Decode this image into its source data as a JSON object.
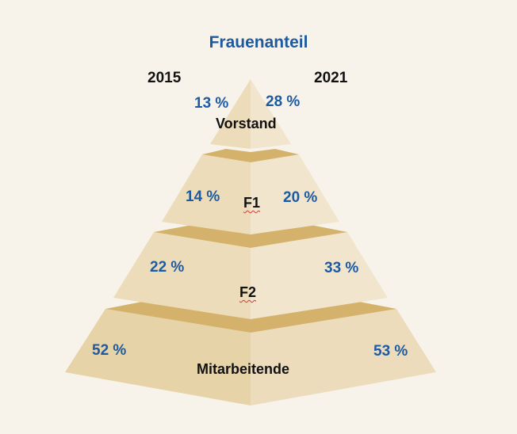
{
  "title": "Frauenanteil",
  "years": {
    "left": "2015",
    "right": "2021"
  },
  "levels": [
    {
      "name": "Vorstand",
      "share_2015": "13 %",
      "share_2021": "28 %"
    },
    {
      "name": "F1",
      "share_2015": "14 %",
      "share_2021": "20 %"
    },
    {
      "name": "F2",
      "share_2015": "22 %",
      "share_2021": "33 %"
    },
    {
      "name": "Mitarbeitende",
      "share_2015": "52 %",
      "share_2021": "53 %"
    }
  ],
  "colors": {
    "background": "#f8f3ea",
    "face_2015": "#ead9b6",
    "face_2021": "#f0e4cd",
    "ledge": "#d6b472",
    "percent_text": "#1d5aa0",
    "label_text": "#111111"
  }
}
